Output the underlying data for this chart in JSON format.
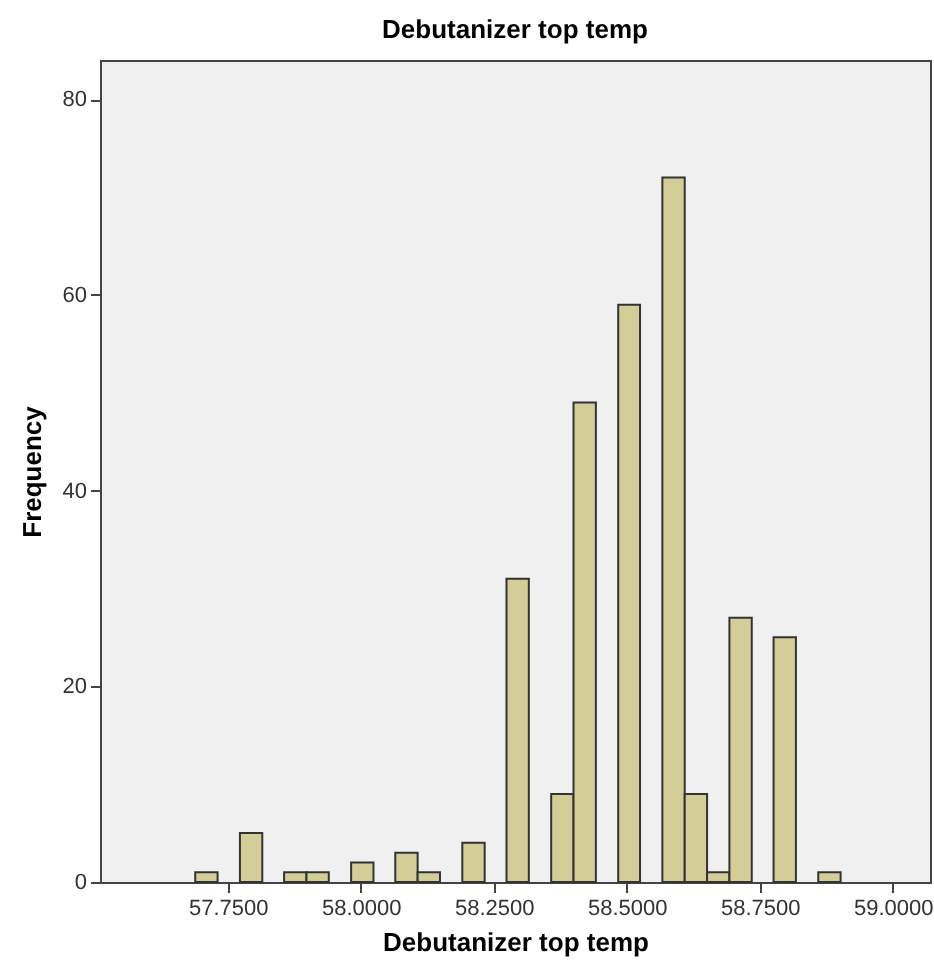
{
  "chart_data": {
    "type": "histogram",
    "title": "Debutanizer top temp",
    "xlabel": "Debutanizer top temp",
    "ylabel": "Frequency",
    "bins": [
      57.689,
      57.731,
      57.773,
      57.815,
      57.856,
      57.898,
      57.94,
      57.982,
      58.024,
      58.065,
      58.107,
      58.149,
      58.191,
      58.233,
      58.274,
      58.316,
      58.358,
      58.4,
      58.442,
      58.484,
      58.525,
      58.567,
      58.609,
      58.651,
      58.693,
      58.735,
      58.776,
      58.818,
      58.86,
      58.902
    ],
    "values": [
      1,
      0,
      5,
      0,
      1,
      1,
      0,
      2,
      0,
      3,
      1,
      0,
      4,
      0,
      31,
      0,
      9,
      49,
      0,
      59,
      0,
      72,
      9,
      1,
      27,
      0,
      25,
      0,
      1
    ],
    "color": "#d3ce98",
    "xlim": [
      57.51,
      59.07
    ],
    "xticks": [
      {
        "value": 57.75,
        "label": "57.7500"
      },
      {
        "value": 58.0,
        "label": "58.0000"
      },
      {
        "value": 58.25,
        "label": "58.2500"
      },
      {
        "value": 58.5,
        "label": "58.5000"
      },
      {
        "value": 58.75,
        "label": "58.7500"
      },
      {
        "value": 59.0,
        "label": "59.0000"
      }
    ],
    "ylim": [
      0,
      84
    ],
    "yticks": [
      0,
      20,
      40,
      60,
      80
    ],
    "grid": false
  }
}
